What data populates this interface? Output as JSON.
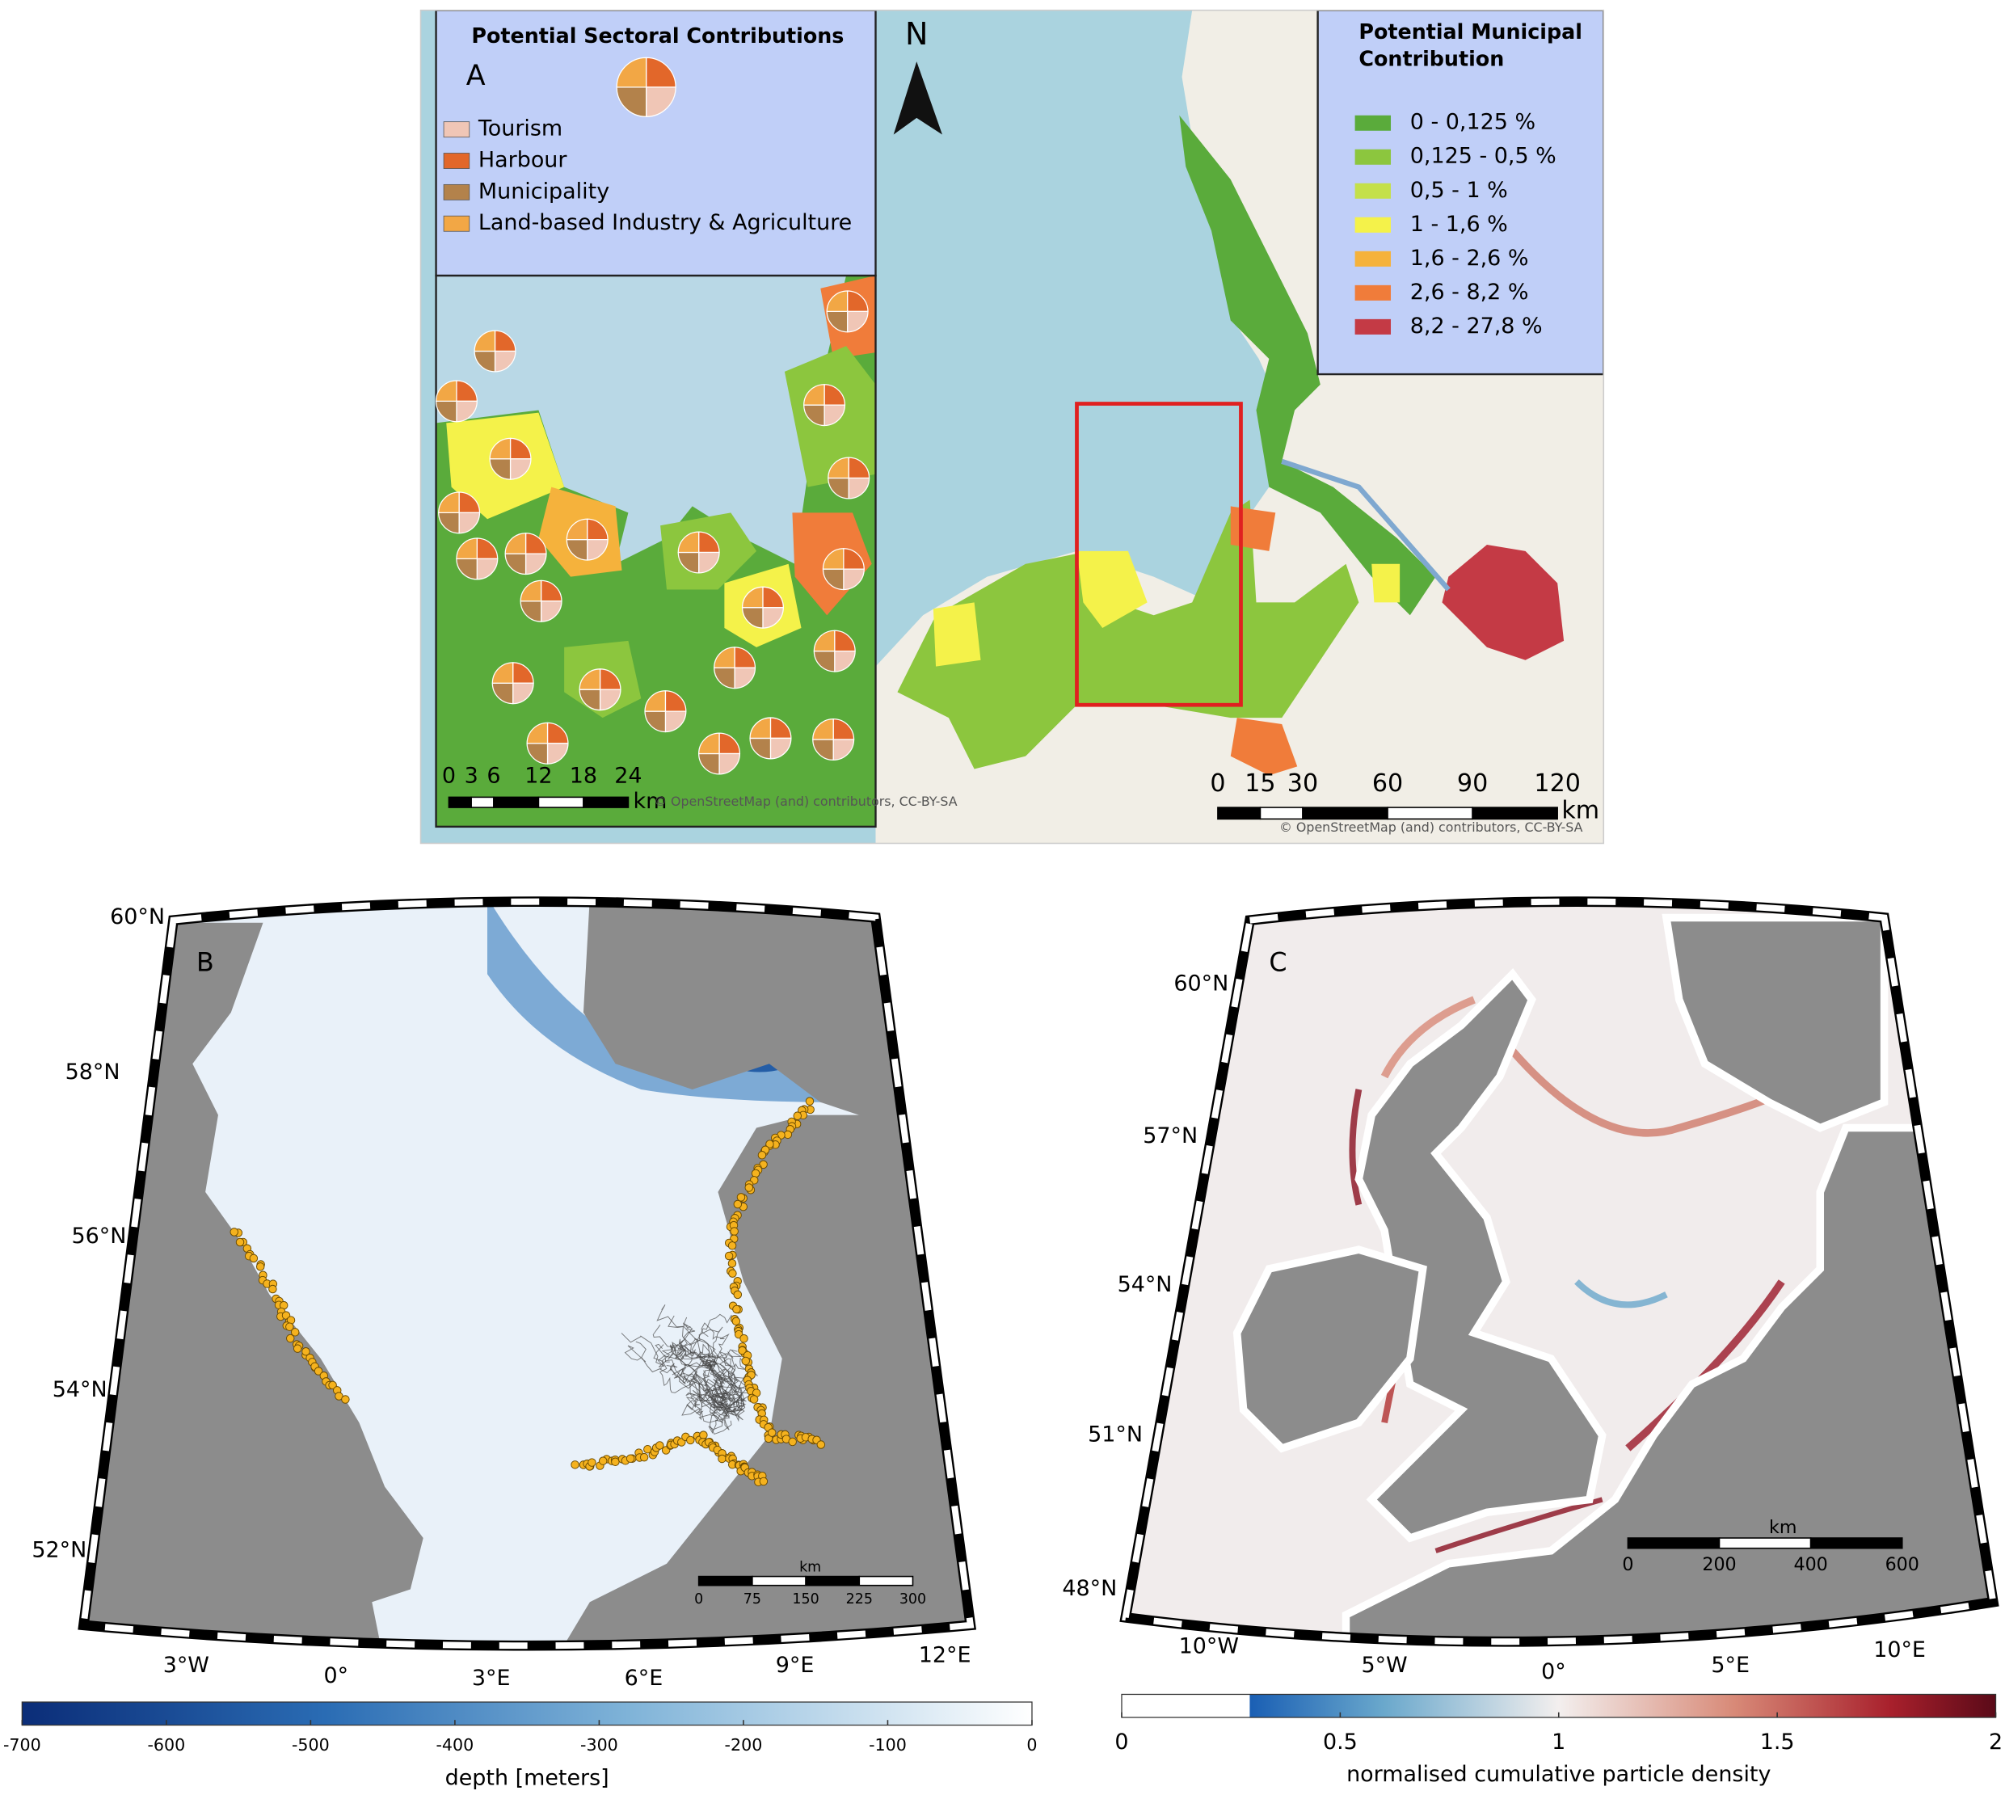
{
  "panel_a": {
    "label": "A",
    "north": "N",
    "sectoral_legend": {
      "title": "Potential Sectoral Contributions",
      "items": [
        {
          "label": "Tourism",
          "color": "#f0c6b6"
        },
        {
          "label": "Harbour",
          "color": "#e2672a"
        },
        {
          "label": "Municipality",
          "color": "#b3824b"
        },
        {
          "label": "Land-based Industry & Agriculture",
          "color": "#f2a745"
        }
      ]
    },
    "municipal_legend": {
      "title_lines": [
        "Potential Municipal",
        "Contribution"
      ],
      "items": [
        {
          "label": "0 - 0,125 %",
          "color": "#5aab3b"
        },
        {
          "label": "0,125 - 0,5 %",
          "color": "#8cc63e"
        },
        {
          "label": "0,5 - 1 %",
          "color": "#c4e04a"
        },
        {
          "label": "1 - 1,6 %",
          "color": "#f4f24a"
        },
        {
          "label": "1,6 - 2,6 %",
          "color": "#f5b23c"
        },
        {
          "label": "2,6 - 8,2 %",
          "color": "#f07c3a"
        },
        {
          "label": "8,2 - 27,8 %",
          "color": "#c43a45"
        }
      ]
    },
    "inset_scale": {
      "ticks": [
        0,
        3,
        6,
        12,
        18,
        24
      ],
      "unit": "km"
    },
    "main_scale": {
      "ticks": [
        0,
        15,
        30,
        60,
        90,
        120
      ],
      "unit": "km"
    },
    "attribution": "© OpenStreetMap (and) contributors, CC-BY-SA"
  },
  "panel_b": {
    "label": "B",
    "lat_labels": [
      "60°N",
      "58°N",
      "56°N",
      "54°N",
      "52°N"
    ],
    "lon_labels": [
      "3°W",
      "0°",
      "3°E",
      "6°E",
      "9°E",
      "12°E"
    ],
    "scale": {
      "unit": "km",
      "ticks": [
        0,
        75,
        150,
        225,
        300
      ]
    },
    "colorbar": {
      "label": "depth [meters]",
      "lim": [
        -700,
        0
      ],
      "ticks": [
        -700,
        -600,
        -500,
        -400,
        -300,
        -200,
        -100,
        0
      ]
    }
  },
  "panel_c": {
    "label": "C",
    "lat_labels": [
      "60°N",
      "57°N",
      "54°N",
      "51°N",
      "48°N"
    ],
    "lon_labels": [
      "10°W",
      "5°W",
      "0°",
      "5°E",
      "10°E"
    ],
    "scale": {
      "unit": "km",
      "ticks": [
        0,
        200,
        400,
        600
      ]
    },
    "colorbar": {
      "label": "normalised cumulative particle density",
      "lim": [
        0,
        2
      ],
      "ticks": [
        0,
        0.5,
        1,
        1.5,
        2
      ]
    }
  }
}
